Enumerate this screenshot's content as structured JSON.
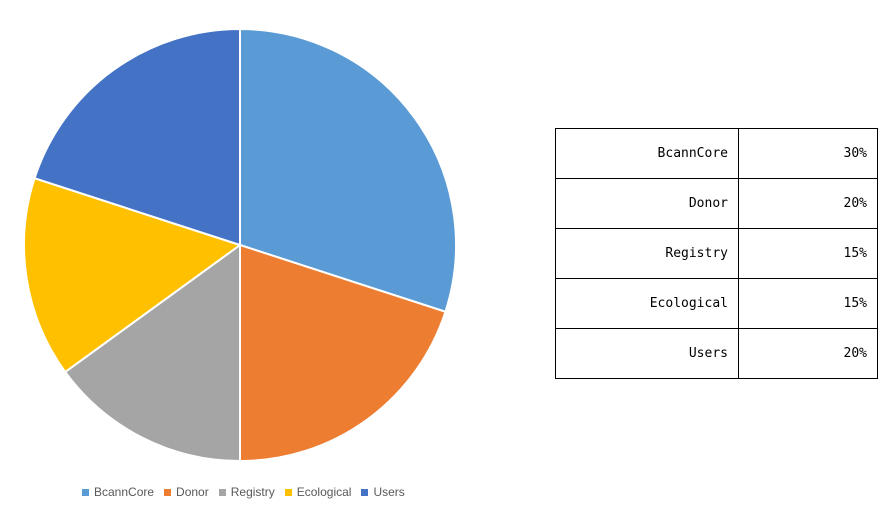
{
  "chart_data": {
    "type": "pie",
    "categories": [
      "BcannCore",
      "Donor",
      "Registry",
      "Ecological",
      "Users"
    ],
    "values": [
      30,
      20,
      15,
      15,
      20
    ],
    "colors": [
      "#5B9BD5",
      "#ED7D31",
      "#A5A5A5",
      "#FFC000",
      "#4472C4"
    ],
    "legend": "bottom"
  },
  "legend": {
    "items": [
      {
        "label": "BcannCore",
        "color": "#5B9BD5"
      },
      {
        "label": "Donor",
        "color": "#ED7D31"
      },
      {
        "label": "Registry",
        "color": "#A5A5A5"
      },
      {
        "label": "Ecological",
        "color": "#FFC000"
      },
      {
        "label": "Users",
        "color": "#4472C4"
      }
    ]
  },
  "table": {
    "rows": [
      {
        "name": "BcannCore",
        "value": "30%"
      },
      {
        "name": "Donor",
        "value": "20%"
      },
      {
        "name": "Registry",
        "value": "15%"
      },
      {
        "name": "Ecological",
        "value": "15%"
      },
      {
        "name": "Users",
        "value": "20%"
      }
    ]
  }
}
